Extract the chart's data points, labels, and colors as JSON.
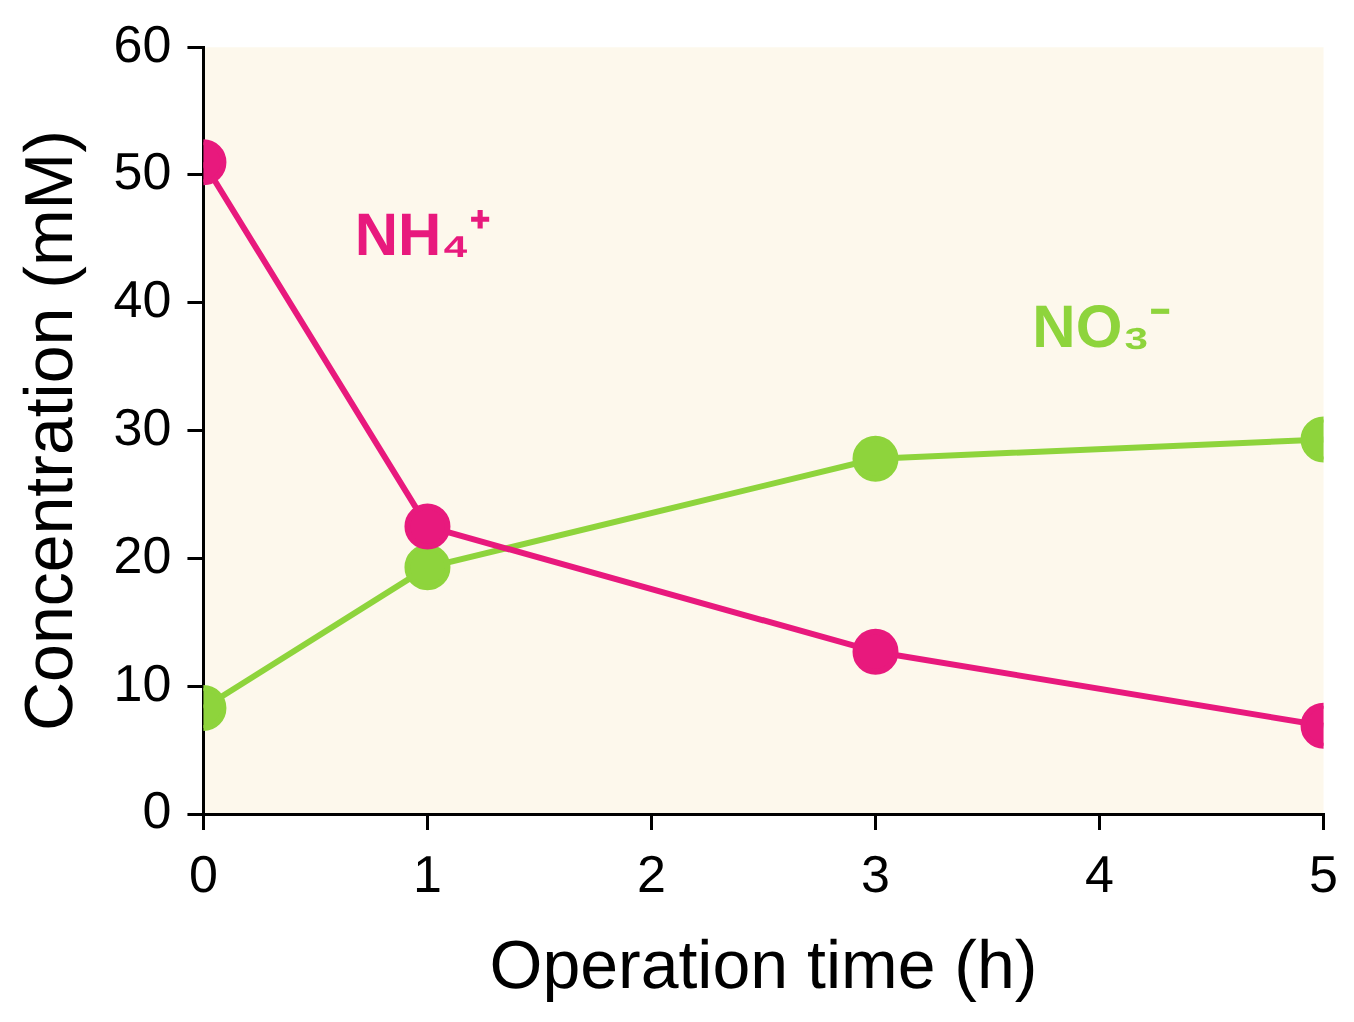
{
  "chart_data": {
    "type": "line",
    "xlabel": "Operation time (h)",
    "ylabel": "Concentration (mM)",
    "x": [
      0,
      1,
      3,
      5
    ],
    "series": [
      {
        "name": "NH₄⁺",
        "color": "#e8197d",
        "values": [
          51.0,
          22.5,
          12.7,
          6.9
        ]
      },
      {
        "name": "NO₃⁻",
        "color": "#8ed43c",
        "values": [
          8.3,
          19.3,
          27.8,
          29.3
        ]
      }
    ],
    "xlim": [
      0,
      5
    ],
    "xticks": [
      0,
      1,
      2,
      3,
      4,
      5
    ],
    "ylim": [
      0,
      60
    ],
    "yticks": [
      0,
      10,
      20,
      30,
      40,
      50,
      60
    ],
    "grid": false,
    "legend": false,
    "marker": "circle",
    "line_style": "solid"
  }
}
